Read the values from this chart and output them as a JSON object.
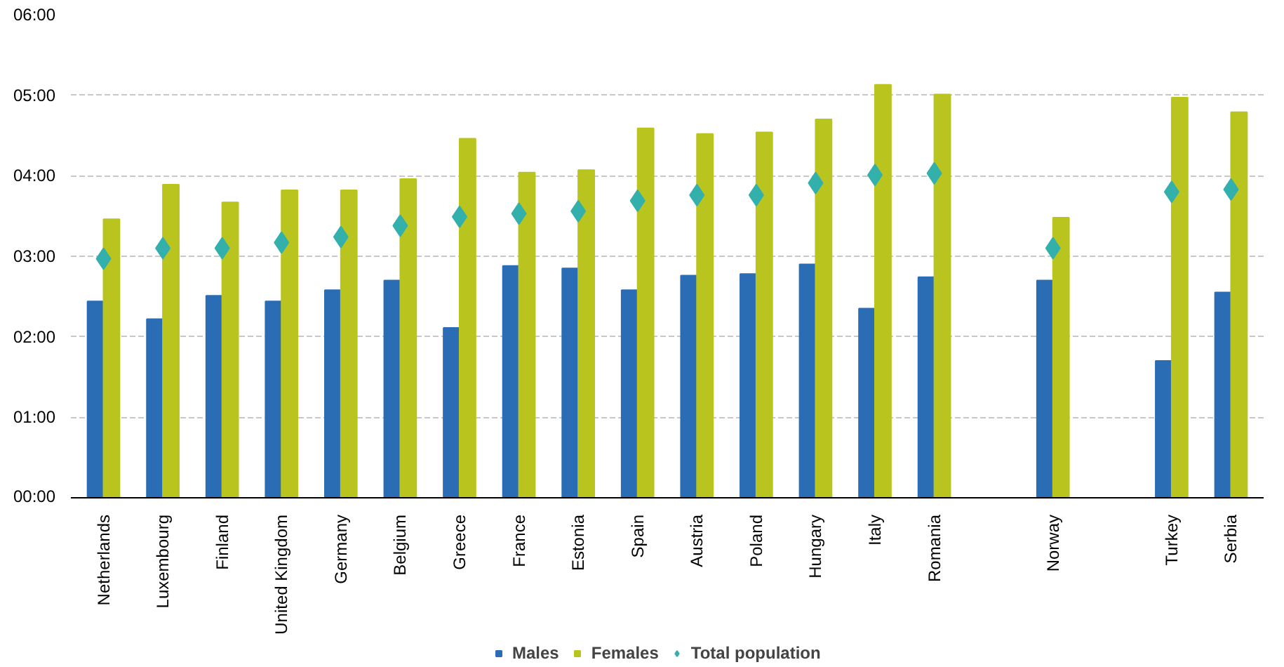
{
  "chart_data": {
    "type": "bar",
    "categories": [
      "Netherlands",
      "Luxembourg",
      "Finland",
      "United Kingdom",
      "Germany",
      "Belgium",
      "Greece",
      "France",
      "Estonia",
      "Spain",
      "Austria",
      "Poland",
      "Hungary",
      "Italy",
      "Romania",
      null,
      "Norway",
      null,
      "Turkey",
      "Serbia"
    ],
    "series": [
      {
        "name": "Males",
        "color": "#2a6db5",
        "values": [
          2.44,
          2.22,
          2.51,
          2.44,
          2.58,
          2.7,
          2.11,
          2.88,
          2.85,
          2.58,
          2.76,
          2.78,
          2.9,
          2.35,
          2.74,
          null,
          2.7,
          null,
          1.7,
          2.55
        ]
      },
      {
        "name": "Females",
        "color": "#b9c41f",
        "values": [
          3.46,
          3.89,
          3.67,
          3.82,
          3.82,
          3.96,
          4.46,
          4.04,
          4.07,
          4.59,
          4.52,
          4.54,
          4.7,
          5.13,
          5.01,
          null,
          3.48,
          null,
          4.97,
          4.79
        ]
      },
      {
        "name": "Total population",
        "type": "scatter",
        "marker": "diamond",
        "color": "#33b0ab",
        "values": [
          2.97,
          3.1,
          3.1,
          3.17,
          3.24,
          3.38,
          3.49,
          3.53,
          3.56,
          3.69,
          3.76,
          3.76,
          3.91,
          4.01,
          4.03,
          null,
          3.1,
          null,
          3.8,
          3.83
        ]
      }
    ],
    "ylim": [
      0,
      6
    ],
    "yticks": [
      {
        "value": 0,
        "label": "00:00"
      },
      {
        "value": 1,
        "label": "01:00"
      },
      {
        "value": 2,
        "label": "02:00"
      },
      {
        "value": 3,
        "label": "03:00"
      },
      {
        "value": 4,
        "label": "04:00"
      },
      {
        "value": 5,
        "label": "05:00"
      },
      {
        "value": 6,
        "label": "06:00"
      }
    ],
    "grid": "y",
    "legend": "bottom"
  }
}
